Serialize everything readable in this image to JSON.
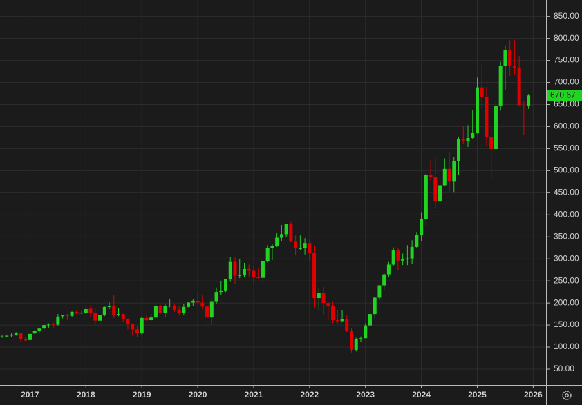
{
  "chart_data": {
    "type": "candlestick",
    "categories": [
      null,
      null,
      null,
      null,
      null,
      null,
      "2017",
      null,
      null,
      null,
      null,
      null,
      null,
      null,
      null,
      null,
      null,
      null,
      "2018",
      null,
      null,
      null,
      null,
      null,
      null,
      null,
      null,
      null,
      null,
      null,
      "2019",
      null,
      null,
      null,
      null,
      null,
      null,
      null,
      null,
      null,
      null,
      null,
      "2020",
      null,
      null,
      null,
      null,
      null,
      null,
      null,
      null,
      null,
      null,
      null,
      "2021",
      null,
      null,
      null,
      null,
      null,
      null,
      null,
      null,
      null,
      null,
      null,
      "2022",
      null,
      null,
      null,
      null,
      null,
      null,
      null,
      null,
      null,
      null,
      null,
      "2023",
      null,
      null,
      null,
      null,
      null,
      null,
      null,
      null,
      null,
      null,
      null,
      "2024",
      null,
      null,
      null,
      null,
      null,
      null,
      null,
      null,
      null,
      null,
      null,
      "2025",
      null,
      null,
      null,
      null,
      null,
      null,
      null,
      null,
      null,
      null,
      null,
      "2026"
    ],
    "ohlc": [
      [
        123,
        128,
        121,
        124
      ],
      [
        124,
        126,
        122,
        126
      ],
      [
        126,
        131,
        122,
        128
      ],
      [
        128,
        134,
        126,
        131
      ],
      [
        131,
        132,
        113,
        118
      ],
      [
        118,
        122,
        114,
        115
      ],
      [
        116,
        133,
        115,
        130
      ],
      [
        131,
        137,
        130,
        136
      ],
      [
        136,
        142,
        134,
        142
      ],
      [
        142,
        151,
        138,
        150
      ],
      [
        151,
        154,
        144,
        151
      ],
      [
        152,
        156,
        144,
        151
      ],
      [
        151,
        175,
        147,
        169
      ],
      [
        170,
        173,
        165,
        172
      ],
      [
        172,
        175,
        161,
        171
      ],
      [
        171,
        181,
        168,
        180
      ],
      [
        180,
        184,
        174,
        177
      ],
      [
        177,
        182,
        175,
        176
      ],
      [
        177,
        190,
        175,
        186
      ],
      [
        187,
        195,
        167,
        178
      ],
      [
        178,
        187,
        149,
        160
      ],
      [
        160,
        175,
        150,
        172
      ],
      [
        172,
        192,
        170,
        191
      ],
      [
        191,
        203,
        186,
        194
      ],
      [
        194,
        218,
        166,
        172
      ],
      [
        172,
        188,
        170,
        175
      ],
      [
        175,
        176,
        158,
        164
      ],
      [
        164,
        165,
        140,
        152
      ],
      [
        152,
        154,
        126,
        140
      ],
      [
        140,
        147,
        123,
        131
      ],
      [
        131,
        170,
        128,
        166
      ],
      [
        166,
        173,
        159,
        161
      ],
      [
        161,
        175,
        160,
        167
      ],
      [
        167,
        198,
        165,
        193
      ],
      [
        193,
        196,
        176,
        177
      ],
      [
        177,
        198,
        168,
        193
      ],
      [
        193,
        208,
        190,
        194
      ],
      [
        194,
        198,
        180,
        185
      ],
      [
        185,
        193,
        173,
        178
      ],
      [
        178,
        198,
        173,
        191
      ],
      [
        191,
        203,
        190,
        201
      ],
      [
        201,
        208,
        194,
        205
      ],
      [
        205,
        224,
        201,
        201
      ],
      [
        201,
        218,
        185,
        192
      ],
      [
        192,
        196,
        137,
        167
      ],
      [
        167,
        208,
        151,
        204
      ],
      [
        204,
        235,
        198,
        225
      ],
      [
        225,
        250,
        219,
        227
      ],
      [
        227,
        255,
        225,
        254
      ],
      [
        254,
        304,
        248,
        293
      ],
      [
        293,
        303,
        244,
        262
      ],
      [
        262,
        299,
        256,
        263
      ],
      [
        263,
        291,
        258,
        277
      ],
      [
        277,
        287,
        260,
        273
      ],
      [
        273,
        285,
        245,
        258
      ],
      [
        258,
        278,
        254,
        257
      ],
      [
        257,
        297,
        245,
        295
      ],
      [
        295,
        331,
        292,
        325
      ],
      [
        325,
        334,
        297,
        329
      ],
      [
        329,
        358,
        327,
        348
      ],
      [
        348,
        377,
        341,
        356
      ],
      [
        356,
        379,
        350,
        379
      ],
      [
        379,
        384,
        338,
        339
      ],
      [
        339,
        353,
        308,
        324
      ],
      [
        324,
        353,
        320,
        324
      ],
      [
        324,
        347,
        310,
        336
      ],
      [
        336,
        344,
        294,
        313
      ],
      [
        313,
        330,
        190,
        211
      ],
      [
        211,
        233,
        185,
        222
      ],
      [
        222,
        236,
        174,
        200
      ],
      [
        200,
        203,
        161,
        193
      ],
      [
        193,
        204,
        154,
        161
      ],
      [
        161,
        183,
        154,
        159
      ],
      [
        159,
        183,
        156,
        163
      ],
      [
        163,
        172,
        134,
        136
      ],
      [
        136,
        142,
        88,
        93
      ],
      [
        93,
        121,
        90,
        118
      ],
      [
        118,
        124,
        112,
        120
      ],
      [
        120,
        154,
        121,
        149
      ],
      [
        149,
        197,
        146,
        175
      ],
      [
        175,
        214,
        166,
        212
      ],
      [
        212,
        241,
        207,
        240
      ],
      [
        240,
        269,
        229,
        265
      ],
      [
        265,
        293,
        258,
        287
      ],
      [
        287,
        326,
        284,
        319
      ],
      [
        319,
        325,
        274,
        296
      ],
      [
        296,
        312,
        286,
        300
      ],
      [
        300,
        331,
        286,
        301
      ],
      [
        301,
        342,
        289,
        327
      ],
      [
        327,
        361,
        325,
        354
      ],
      [
        354,
        406,
        340,
        390
      ],
      [
        390,
        494,
        376,
        490
      ],
      [
        490,
        523,
        476,
        486
      ],
      [
        486,
        531,
        414,
        430
      ],
      [
        430,
        480,
        428,
        467
      ],
      [
        467,
        528,
        465,
        504
      ],
      [
        504,
        542,
        453,
        475
      ],
      [
        475,
        531,
        450,
        522
      ],
      [
        522,
        577,
        491,
        572
      ],
      [
        572,
        602,
        560,
        567
      ],
      [
        567,
        603,
        554,
        574
      ],
      [
        574,
        638,
        572,
        585
      ],
      [
        585,
        711,
        584,
        689
      ],
      [
        689,
        740,
        643,
        668
      ],
      [
        668,
        690,
        555,
        576
      ],
      [
        576,
        592,
        480,
        549
      ],
      [
        549,
        660,
        541,
        647
      ],
      [
        647,
        747,
        636,
        738
      ],
      [
        738,
        784,
        682,
        773
      ],
      [
        773,
        796,
        715,
        738
      ],
      [
        738,
        797,
        717,
        734
      ],
      [
        734,
        760,
        649,
        648
      ],
      [
        648,
        658,
        581,
        647
      ],
      [
        647,
        674,
        640,
        670.67
      ],
      null
    ],
    "up_color": "#22d422",
    "down_color": "#e00000",
    "ylim": [
      14,
      887
    ],
    "yticks": [
      {
        "value": 50,
        "label": "50.00"
      },
      {
        "value": 100,
        "label": "100.00"
      },
      {
        "value": 150,
        "label": "150.00"
      },
      {
        "value": 200,
        "label": "200.00"
      },
      {
        "value": 250,
        "label": "250.00"
      },
      {
        "value": 300,
        "label": "300.00"
      },
      {
        "value": 350,
        "label": "350.00"
      },
      {
        "value": 400,
        "label": "400.00"
      },
      {
        "value": 450,
        "label": "450.00"
      },
      {
        "value": 500,
        "label": "500.00"
      },
      {
        "value": 550,
        "label": "550.00"
      },
      {
        "value": 600,
        "label": "600.00"
      },
      {
        "value": 650,
        "label": "650.00"
      },
      {
        "value": 700,
        "label": "700.00"
      },
      {
        "value": 750,
        "label": "750.00"
      },
      {
        "value": 800,
        "label": "800.00"
      },
      {
        "value": 850,
        "label": "850.00"
      }
    ],
    "last_price": 670.67,
    "grid": true
  }
}
